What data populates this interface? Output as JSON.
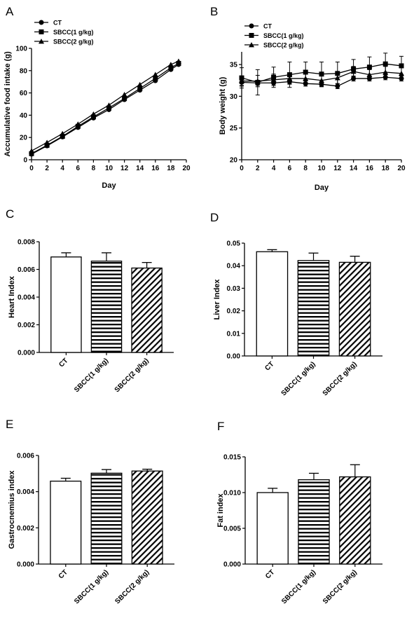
{
  "chart_data": [
    {
      "panel": "A",
      "type": "line",
      "xlabel": "Day",
      "ylabel": "Accumulative food intake (g)",
      "xlim": [
        0,
        20
      ],
      "ylim": [
        0,
        100
      ],
      "xticks": [
        "0",
        "2",
        "4",
        "6",
        "8",
        "10",
        "12",
        "14",
        "16",
        "18",
        "20"
      ],
      "yticks": [
        "0",
        "20",
        "40",
        "60",
        "80",
        "100"
      ],
      "legend_position": "top-left",
      "x": [
        0,
        2,
        4,
        6,
        8,
        10,
        12,
        14,
        16,
        18,
        19
      ],
      "series": [
        {
          "name": "CT",
          "marker": "circle",
          "values": [
            5,
            12.5,
            20.5,
            29,
            37.5,
            45,
            54,
            62.5,
            71,
            81,
            85.5
          ]
        },
        {
          "name": "SBCC(1 g/kg)",
          "marker": "square",
          "values": [
            5.5,
            13,
            21,
            30,
            38.5,
            46.5,
            55,
            64,
            73,
            82.5,
            86.5
          ]
        },
        {
          "name": "SBCC(2 g/kg)",
          "marker": "triangle",
          "values": [
            8,
            15.5,
            23.5,
            32,
            41,
            49,
            58.5,
            67.5,
            76.5,
            85.5,
            88.5
          ]
        }
      ]
    },
    {
      "panel": "B",
      "type": "line",
      "xlabel": "Day",
      "ylabel": "Body weight (g)",
      "xlim": [
        0,
        20
      ],
      "ylim": [
        20,
        37
      ],
      "xticks": [
        "0",
        "2",
        "4",
        "6",
        "8",
        "10",
        "12",
        "14",
        "16",
        "18",
        "20"
      ],
      "yticks": [
        "20",
        "25",
        "30",
        "35"
      ],
      "legend_position": "top-left",
      "x": [
        0,
        2,
        4,
        6,
        8,
        10,
        12,
        14,
        16,
        18,
        20
      ],
      "series": [
        {
          "name": "CT",
          "marker": "circle",
          "values": [
            32.2,
            32.1,
            32.1,
            32.3,
            32.0,
            31.9,
            31.6,
            32.8,
            32.8,
            33.0,
            32.8
          ],
          "errors": [
            0.5,
            0.4,
            0.4,
            0.4,
            0.4,
            0.4,
            0.4,
            0.4,
            0.4,
            0.4,
            0.4
          ]
        },
        {
          "name": "SBCC(1 g/kg)",
          "marker": "square",
          "values": [
            32.9,
            32.2,
            33.0,
            33.4,
            33.8,
            33.5,
            33.6,
            34.3,
            34.6,
            35.1,
            34.8
          ],
          "errors": [
            1.6,
            2.0,
            1.6,
            2.0,
            1.6,
            1.9,
            1.8,
            1.5,
            1.6,
            1.7,
            1.5
          ]
        },
        {
          "name": "SBCC(2 g/kg)",
          "marker": "triangle",
          "values": [
            32.4,
            32.4,
            32.6,
            32.8,
            32.8,
            32.5,
            32.9,
            33.9,
            33.4,
            33.8,
            33.6
          ],
          "errors": [
            0.8,
            0.9,
            0.9,
            0.8,
            0.9,
            0.9,
            0.9,
            0.8,
            0.8,
            0.9,
            0.9
          ]
        }
      ]
    },
    {
      "panel": "C",
      "type": "bar",
      "ylabel": "Heart Index",
      "ylim": [
        0,
        0.008
      ],
      "yticks": [
        "0.000",
        "0.002",
        "0.004",
        "0.006",
        "0.008"
      ],
      "categories": [
        "CT",
        "SBCC(1 g/kg)",
        "SBCC(2 g/kg)"
      ],
      "patterns": [
        "none",
        "horizontal",
        "diagonal"
      ],
      "values": [
        0.0069,
        0.0066,
        0.0061
      ],
      "errors": [
        0.0003,
        0.0006,
        0.0004
      ]
    },
    {
      "panel": "D",
      "type": "bar",
      "ylabel": "Liver Index",
      "ylim": [
        0,
        0.05
      ],
      "yticks": [
        "0.00",
        "0.01",
        "0.02",
        "0.03",
        "0.04",
        "0.05"
      ],
      "categories": [
        "CT",
        "SBCC(1 g/kg)",
        "SBCC(2 g/kg)"
      ],
      "patterns": [
        "none",
        "horizontal",
        "diagonal"
      ],
      "values": [
        0.0462,
        0.0423,
        0.0415
      ],
      "errors": [
        0.0009,
        0.0033,
        0.0027
      ]
    },
    {
      "panel": "E",
      "type": "bar",
      "ylabel": "Gastrocnemius index",
      "ylim": [
        0,
        0.006
      ],
      "yticks": [
        "0.000",
        "0.002",
        "0.004",
        "0.006"
      ],
      "categories": [
        "CT",
        "SBCC(1 g/kg)",
        "SBCC(2 g/kg)"
      ],
      "patterns": [
        "none",
        "horizontal",
        "diagonal"
      ],
      "values": [
        0.00458,
        0.00502,
        0.00514
      ],
      "errors": [
        0.00016,
        0.0002,
        0.0001
      ]
    },
    {
      "panel": "F",
      "type": "bar",
      "ylabel": "Fat index",
      "ylim": [
        0,
        0.015
      ],
      "yticks": [
        "0.000",
        "0.005",
        "0.010",
        "0.015"
      ],
      "categories": [
        "CT",
        "SBCC(1 g/kg)",
        "SBCC(2 g/kg)"
      ],
      "patterns": [
        "none",
        "horizontal",
        "diagonal"
      ],
      "values": [
        0.01,
        0.0118,
        0.0122
      ],
      "errors": [
        0.0006,
        0.0009,
        0.0017
      ]
    }
  ]
}
